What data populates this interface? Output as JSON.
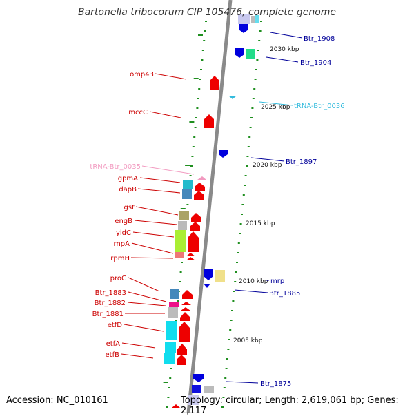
{
  "title": "Bartonella tribocorum CIP 105476, complete genome",
  "footer": {
    "accession": "Accession: NC_010161",
    "stats": "Topology: circular; Length: 2,619,061 bp; Genes: 2,117"
  },
  "colors": {
    "backbone": "#8a8a8a",
    "ticks": "#1f8f1f",
    "forward_label": "#cc0000",
    "reverse_label": "#000099",
    "trna_forward": "#f29ac0",
    "trna_reverse": "#33bbdd"
  },
  "kbp_labels": [
    "2030 kbp",
    "2025 kbp",
    "2020 kbp",
    "2015 kbp",
    "2010 kbp",
    "2005 kbp"
  ],
  "left_labels": [
    "omp43",
    "mccC",
    "tRNA-Btr_0035",
    "gpmA",
    "dapB",
    "gst",
    "engB",
    "yidC",
    "rnpA",
    "rpmH",
    "proC",
    "Btr_1883",
    "Btr_1882",
    "Btr_1881",
    "etfD",
    "etfA",
    "etfB"
  ],
  "right_labels": [
    "Btr_1908",
    "Btr_1904",
    "tRNA-Btr_0036",
    "Btr_1897",
    "mrp",
    "Btr_1885",
    "Btr_1875"
  ]
}
